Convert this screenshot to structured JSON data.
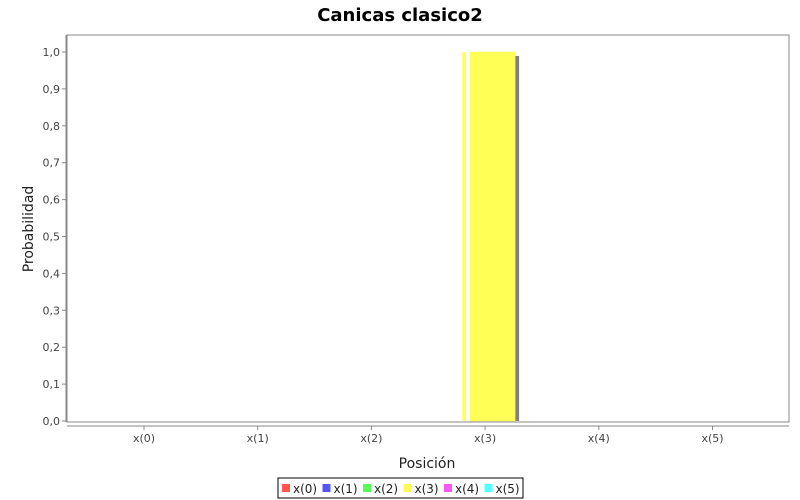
{
  "chart_data": {
    "type": "bar",
    "title": "Canicas clasico2",
    "xlabel": "Posición",
    "ylabel": "Probabilidad",
    "categories": [
      "x(0)",
      "x(1)",
      "x(2)",
      "x(3)",
      "x(4)",
      "x(5)"
    ],
    "ylim": [
      0,
      1.05
    ],
    "yticks": [
      "0,0",
      "0,1",
      "0,2",
      "0,3",
      "0,4",
      "0,5",
      "0,6",
      "0,7",
      "0,8",
      "0,9",
      "1,0"
    ],
    "grid": false,
    "legend_position": "bottom",
    "series": [
      {
        "name": "x(0)",
        "color": "#ff5555",
        "values": [
          0,
          0,
          0,
          0,
          0,
          0
        ]
      },
      {
        "name": "x(1)",
        "color": "#5555ff",
        "values": [
          0,
          0,
          0,
          0,
          0,
          0
        ]
      },
      {
        "name": "x(2)",
        "color": "#55ff55",
        "values": [
          0,
          0,
          0,
          0,
          0,
          0
        ]
      },
      {
        "name": "x(3)",
        "color": "#ffff55",
        "values": [
          0,
          0,
          0,
          1.0,
          0,
          0
        ]
      },
      {
        "name": "x(4)",
        "color": "#ff55ff",
        "values": [
          0,
          0,
          0,
          0,
          0,
          0
        ]
      },
      {
        "name": "x(5)",
        "color": "#55ffff",
        "values": [
          0,
          0,
          0,
          0,
          0,
          0
        ]
      }
    ]
  }
}
